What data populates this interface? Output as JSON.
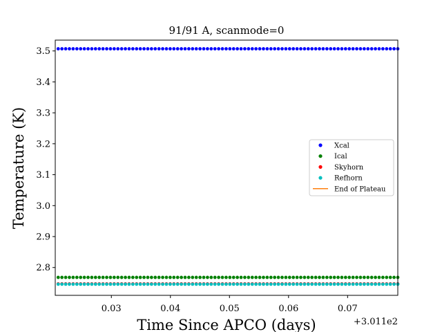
{
  "chart_data": {
    "type": "scatter",
    "title": "91/91 A, scanmode=0",
    "xlabel": "Time Since APCO (days)",
    "ylabel": "Temperature (K)",
    "x_offset_label": "+3.011e2",
    "xlim": [
      0.0205,
      0.0785
    ],
    "ylim": [
      2.71,
      3.535
    ],
    "x_ticks": [
      0.03,
      0.04,
      0.05,
      0.06,
      0.07
    ],
    "x_tick_labels": [
      "0.03",
      "0.04",
      "0.05",
      "0.06",
      "0.07"
    ],
    "y_ticks": [
      2.8,
      2.9,
      3.0,
      3.1,
      3.2,
      3.3,
      3.4,
      3.5
    ],
    "y_tick_labels": [
      "2.8",
      "2.9",
      "3.0",
      "3.1",
      "3.2",
      "3.3",
      "3.4",
      "3.5"
    ],
    "grid": false,
    "legend_position": "center-right",
    "x_start": 0.021,
    "x_end": 0.0785,
    "n_points": 92,
    "series": [
      {
        "name": "Xcal",
        "color": "#0000ff",
        "value": 3.507,
        "marker": "dot"
      },
      {
        "name": "Ical",
        "color": "#008000",
        "value": 2.768,
        "marker": "dot"
      },
      {
        "name": "Skyhorn",
        "color": "#ff0000",
        "value": 2.747,
        "marker": "dot"
      },
      {
        "name": "Refhorn",
        "color": "#00bfbf",
        "value": 2.746,
        "marker": "dot"
      },
      {
        "name": "End of Plateau",
        "color": "#ff7f0e",
        "marker": "line"
      }
    ]
  }
}
